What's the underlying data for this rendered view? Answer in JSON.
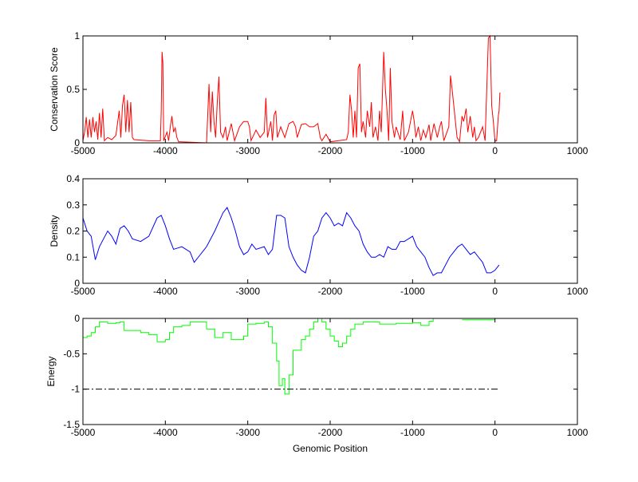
{
  "chart_data": [
    {
      "type": "line",
      "ylabel": "Conservation Score",
      "xlabel": "",
      "xlim": [
        -5000,
        1000
      ],
      "ylim": [
        0,
        1
      ],
      "xticks": [
        -5000,
        -4000,
        -3000,
        -2000,
        -1000,
        0,
        1000
      ],
      "yticks": [
        0,
        0.5,
        1
      ],
      "grid": false,
      "series": [
        {
          "name": "conservation",
          "color": "#ff0000",
          "step": false,
          "x": [
            -5000,
            -4980,
            -4960,
            -4940,
            -4920,
            -4900,
            -4880,
            -4860,
            -4840,
            -4820,
            -4800,
            -4780,
            -4760,
            -4740,
            -4700,
            -4650,
            -4600,
            -4560,
            -4540,
            -4520,
            -4500,
            -4480,
            -4460,
            -4440,
            -4420,
            -4400,
            -4380,
            -4200,
            -4060,
            -4050,
            -4040,
            -4030,
            -4020,
            -3980,
            -3960,
            -3940,
            -3920,
            -3900,
            -3880,
            -3860,
            -3840,
            -3500,
            -3470,
            -3450,
            -3430,
            -3410,
            -3390,
            -3370,
            -3350,
            -3330,
            -3300,
            -3270,
            -3250,
            -3200,
            -3160,
            -3100,
            -3050,
            -3000,
            -2980,
            -2960,
            -2900,
            -2850,
            -2800,
            -2780,
            -2760,
            -2720,
            -2700,
            -2680,
            -2660,
            -2640,
            -2600,
            -2550,
            -2500,
            -2450,
            -2420,
            -2400,
            -2350,
            -2300,
            -2250,
            -2200,
            -2150,
            -2120,
            -2100,
            -2050,
            -2000,
            -1800,
            -1780,
            -1760,
            -1740,
            -1720,
            -1700,
            -1680,
            -1660,
            -1640,
            -1620,
            -1600,
            -1570,
            -1550,
            -1520,
            -1500,
            -1480,
            -1450,
            -1420,
            -1400,
            -1380,
            -1350,
            -1330,
            -1310,
            -1290,
            -1270,
            -1250,
            -1220,
            -1200,
            -1150,
            -1120,
            -1100,
            -1050,
            -1000,
            -980,
            -960,
            -930,
            -900,
            -870,
            -840,
            -800,
            -780,
            -740,
            -700,
            -670,
            -650,
            -620,
            -560,
            -540,
            -520,
            -500,
            -480,
            -460,
            -430,
            -400,
            -380,
            -350,
            -330,
            -300,
            -270,
            -250,
            -230,
            -200,
            -150,
            -120,
            -100,
            -80,
            -60,
            -40,
            -20,
            0,
            20,
            40,
            50,
            60
          ],
          "y": [
            0.02,
            0.1,
            0.24,
            0.05,
            0.22,
            0.05,
            0.24,
            0.1,
            0.2,
            0.03,
            0.28,
            0.05,
            0.32,
            0.02,
            0.05,
            0.03,
            0.07,
            0.3,
            0.05,
            0.35,
            0.45,
            0.1,
            0.4,
            0.1,
            0.38,
            0.05,
            0.03,
            0.02,
            0.02,
            0.3,
            0.85,
            0.75,
            0.02,
            0.1,
            0.02,
            0.15,
            0.25,
            0.1,
            0.14,
            0.05,
            0.01,
            0.0,
            0.55,
            0.1,
            0.48,
            0.2,
            0.05,
            0.38,
            0.62,
            0.1,
            0.05,
            0.15,
            0.02,
            0.18,
            0.02,
            0.15,
            0.2,
            0.2,
            0.15,
            0.02,
            0.12,
            0.05,
            0.1,
            0.42,
            0.05,
            0.2,
            0.02,
            0.26,
            0.3,
            0.05,
            0.15,
            0.05,
            0.18,
            0.2,
            0.15,
            0.05,
            0.17,
            0.18,
            0.15,
            0.15,
            0.18,
            0.05,
            0.02,
            0.08,
            0.01,
            0.03,
            0.1,
            0.45,
            0.3,
            0.05,
            0.3,
            0.05,
            0.7,
            0.74,
            0.1,
            0.2,
            0.05,
            0.3,
            0.15,
            0.38,
            0.05,
            0.15,
            0.02,
            0.3,
            0.1,
            0.85,
            0.5,
            0.3,
            0.02,
            0.7,
            0.2,
            0.05,
            0.15,
            0.03,
            0.3,
            0.02,
            0.1,
            0.3,
            0.2,
            0.05,
            0.15,
            0.02,
            0.12,
            0.05,
            0.17,
            0.02,
            0.18,
            0.05,
            0.15,
            0.2,
            0.02,
            0.15,
            0.63,
            0.5,
            0.35,
            0.2,
            0.05,
            0.01,
            0.25,
            0.2,
            0.32,
            0.1,
            0.25,
            0.05,
            0.15,
            0.02,
            0.05,
            0.15,
            0.02,
            0.5,
            0.98,
            1.0,
            0.35,
            0.2,
            0.02,
            0.02,
            0.25,
            0.3,
            0.47
          ]
        }
      ]
    },
    {
      "type": "line",
      "ylabel": "Density",
      "xlabel": "",
      "xlim": [
        -5000,
        1000
      ],
      "ylim": [
        0,
        0.4
      ],
      "xticks": [
        -5000,
        -4000,
        -3000,
        -2000,
        -1000,
        0,
        1000
      ],
      "yticks": [
        0,
        0.1,
        0.2,
        0.3,
        0.4
      ],
      "grid": false,
      "series": [
        {
          "name": "density",
          "color": "#0000ff",
          "step": false,
          "x": [
            -5000,
            -4950,
            -4900,
            -4850,
            -4800,
            -4750,
            -4700,
            -4650,
            -4600,
            -4550,
            -4500,
            -4450,
            -4400,
            -4300,
            -4200,
            -4100,
            -4050,
            -4000,
            -3950,
            -3900,
            -3800,
            -3700,
            -3650,
            -3600,
            -3500,
            -3400,
            -3300,
            -3250,
            -3200,
            -3150,
            -3100,
            -3050,
            -3000,
            -2950,
            -2900,
            -2800,
            -2750,
            -2700,
            -2650,
            -2600,
            -2550,
            -2500,
            -2450,
            -2400,
            -2350,
            -2300,
            -2250,
            -2200,
            -2150,
            -2100,
            -2050,
            -2000,
            -1950,
            -1900,
            -1850,
            -1800,
            -1750,
            -1700,
            -1650,
            -1600,
            -1550,
            -1500,
            -1450,
            -1400,
            -1350,
            -1300,
            -1250,
            -1200,
            -1150,
            -1100,
            -1050,
            -1000,
            -950,
            -900,
            -850,
            -800,
            -750,
            -700,
            -650,
            -600,
            -550,
            -500,
            -450,
            -400,
            -350,
            -300,
            -250,
            -200,
            -150,
            -100,
            -50,
            0,
            50
          ],
          "y": [
            0.25,
            0.2,
            0.18,
            0.09,
            0.14,
            0.17,
            0.2,
            0.18,
            0.15,
            0.21,
            0.22,
            0.2,
            0.17,
            0.16,
            0.18,
            0.25,
            0.26,
            0.22,
            0.17,
            0.13,
            0.14,
            0.12,
            0.08,
            0.1,
            0.14,
            0.2,
            0.27,
            0.29,
            0.25,
            0.2,
            0.14,
            0.11,
            0.12,
            0.15,
            0.13,
            0.14,
            0.11,
            0.13,
            0.26,
            0.26,
            0.25,
            0.14,
            0.1,
            0.07,
            0.05,
            0.04,
            0.1,
            0.18,
            0.2,
            0.25,
            0.27,
            0.25,
            0.22,
            0.23,
            0.22,
            0.27,
            0.25,
            0.22,
            0.2,
            0.15,
            0.12,
            0.1,
            0.1,
            0.11,
            0.1,
            0.14,
            0.13,
            0.13,
            0.16,
            0.16,
            0.17,
            0.18,
            0.14,
            0.12,
            0.1,
            0.06,
            0.03,
            0.04,
            0.04,
            0.07,
            0.1,
            0.12,
            0.14,
            0.15,
            0.13,
            0.11,
            0.12,
            0.1,
            0.08,
            0.04,
            0.04,
            0.05,
            0.07
          ]
        }
      ]
    },
    {
      "type": "line",
      "ylabel": "Energy",
      "xlabel": "Genomic Position",
      "xlim": [
        -5000,
        1000
      ],
      "ylim": [
        -1.5,
        0
      ],
      "xticks": [
        -5000,
        -4000,
        -3000,
        -2000,
        -1000,
        0,
        1000
      ],
      "yticks": [
        -1.5,
        -1,
        -0.5,
        0
      ],
      "grid": false,
      "series": [
        {
          "name": "energy",
          "color": "#00ff00",
          "step": true,
          "x": [
            -5000,
            -4950,
            -4900,
            -4850,
            -4800,
            -4700,
            -4600,
            -4550,
            -4500,
            -4400,
            -4300,
            -4200,
            -4100,
            -4000,
            -3950,
            -3900,
            -3800,
            -3700,
            -3600,
            -3500,
            -3400,
            -3300,
            -3200,
            -3100,
            -3050,
            -3000,
            -2900,
            -2800,
            -2750,
            -2700,
            -2650,
            -2620,
            -2580,
            -2550,
            -2500,
            -2450,
            -2400,
            -2350,
            -2300,
            -2250,
            -2200,
            -2150,
            -2100,
            -2050,
            -2000,
            -1950,
            -1900,
            -1850,
            -1800,
            -1750,
            -1700,
            -1600,
            -1400,
            -1200,
            -1000,
            -900,
            -800,
            -750
          ],
          "y": [
            -0.27,
            -0.25,
            -0.2,
            -0.12,
            -0.05,
            -0.07,
            -0.06,
            -0.05,
            -0.17,
            -0.17,
            -0.2,
            -0.23,
            -0.33,
            -0.3,
            -0.2,
            -0.12,
            -0.1,
            -0.05,
            -0.05,
            -0.15,
            -0.27,
            -0.2,
            -0.3,
            -0.3,
            -0.25,
            -0.08,
            -0.07,
            -0.05,
            -0.12,
            -0.35,
            -0.6,
            -0.95,
            -0.85,
            -1.07,
            -0.8,
            -0.45,
            -0.45,
            -0.3,
            -0.25,
            -0.15,
            -0.05,
            0,
            -0.05,
            -0.15,
            -0.25,
            -0.32,
            -0.4,
            -0.35,
            -0.25,
            -0.15,
            -0.08,
            -0.05,
            -0.08,
            -0.07,
            -0.06,
            -0.1,
            -0.04,
            0
          ]
        },
        {
          "name": "energy-tail",
          "color": "#00ff00",
          "step": true,
          "x": [
            -400,
            0
          ],
          "y": [
            -0.02,
            -0.02
          ]
        },
        {
          "name": "threshold",
          "color": "#000000",
          "step": false,
          "dash": "dash-dot",
          "x": [
            -5000,
            50
          ],
          "y": [
            -1,
            -1
          ]
        }
      ]
    }
  ]
}
